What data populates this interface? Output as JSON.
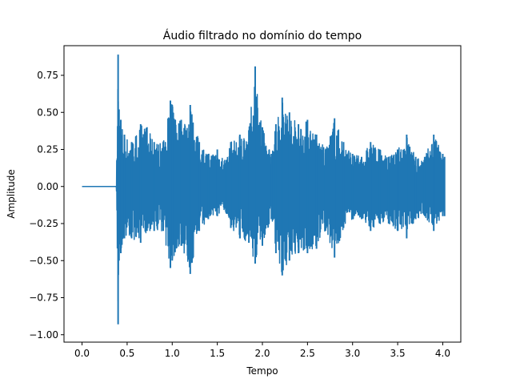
{
  "chart_data": {
    "type": "line",
    "title": "Áudio filtrado no domínio do tempo",
    "xlabel": "Tempo",
    "ylabel": "Amplitude",
    "xlim": [
      -0.2,
      4.2
    ],
    "ylim": [
      -1.05,
      0.95
    ],
    "xticks": [
      0.0,
      0.5,
      1.0,
      1.5,
      2.0,
      2.5,
      3.0,
      3.5,
      4.0
    ],
    "xtick_labels": [
      "0.0",
      "0.5",
      "1.0",
      "1.5",
      "2.0",
      "2.5",
      "3.0",
      "3.5",
      "4.0"
    ],
    "yticks": [
      -1.0,
      -0.75,
      -0.5,
      -0.25,
      0.0,
      0.25,
      0.5,
      0.75
    ],
    "ytick_labels": [
      "−1.00",
      "−0.75",
      "−0.50",
      "−0.25",
      "0.00",
      "0.25",
      "0.50",
      "0.75"
    ],
    "grid": false,
    "color": "#1f77b4",
    "series": [
      {
        "name": "",
        "envelope": {
          "t": [
            0.0,
            0.38,
            0.4,
            0.41,
            0.43,
            0.47,
            0.55,
            0.65,
            0.72,
            0.8,
            0.9,
            0.98,
            1.0,
            1.1,
            1.2,
            1.3,
            1.4,
            1.5,
            1.6,
            1.65,
            1.75,
            1.85,
            1.92,
            2.0,
            2.1,
            2.15,
            2.22,
            2.3,
            2.4,
            2.5,
            2.6,
            2.7,
            2.8,
            2.9,
            3.0,
            3.1,
            3.2,
            3.3,
            3.4,
            3.5,
            3.6,
            3.7,
            3.8,
            3.9,
            4.0,
            4.02
          ],
          "upper": [
            0.0,
            0.0,
            0.89,
            0.52,
            0.45,
            0.35,
            0.3,
            0.42,
            0.4,
            0.3,
            0.3,
            0.58,
            0.55,
            0.45,
            0.55,
            0.3,
            0.22,
            0.25,
            0.18,
            0.3,
            0.35,
            0.38,
            0.81,
            0.4,
            0.22,
            0.42,
            0.6,
            0.5,
            0.42,
            0.45,
            0.35,
            0.25,
            0.46,
            0.3,
            0.22,
            0.2,
            0.3,
            0.25,
            0.2,
            0.25,
            0.35,
            0.2,
            0.2,
            0.35,
            0.22,
            0.2
          ],
          "lower": [
            0.0,
            0.0,
            -0.93,
            -0.5,
            -0.45,
            -0.35,
            -0.35,
            -0.38,
            -0.3,
            -0.3,
            -0.3,
            -0.55,
            -0.5,
            -0.4,
            -0.59,
            -0.3,
            -0.22,
            -0.2,
            -0.18,
            -0.28,
            -0.35,
            -0.38,
            -0.52,
            -0.4,
            -0.22,
            -0.45,
            -0.6,
            -0.5,
            -0.45,
            -0.45,
            -0.42,
            -0.3,
            -0.48,
            -0.28,
            -0.22,
            -0.22,
            -0.3,
            -0.25,
            -0.25,
            -0.3,
            -0.35,
            -0.22,
            -0.2,
            -0.3,
            -0.2,
            -0.2
          ]
        }
      }
    ]
  }
}
